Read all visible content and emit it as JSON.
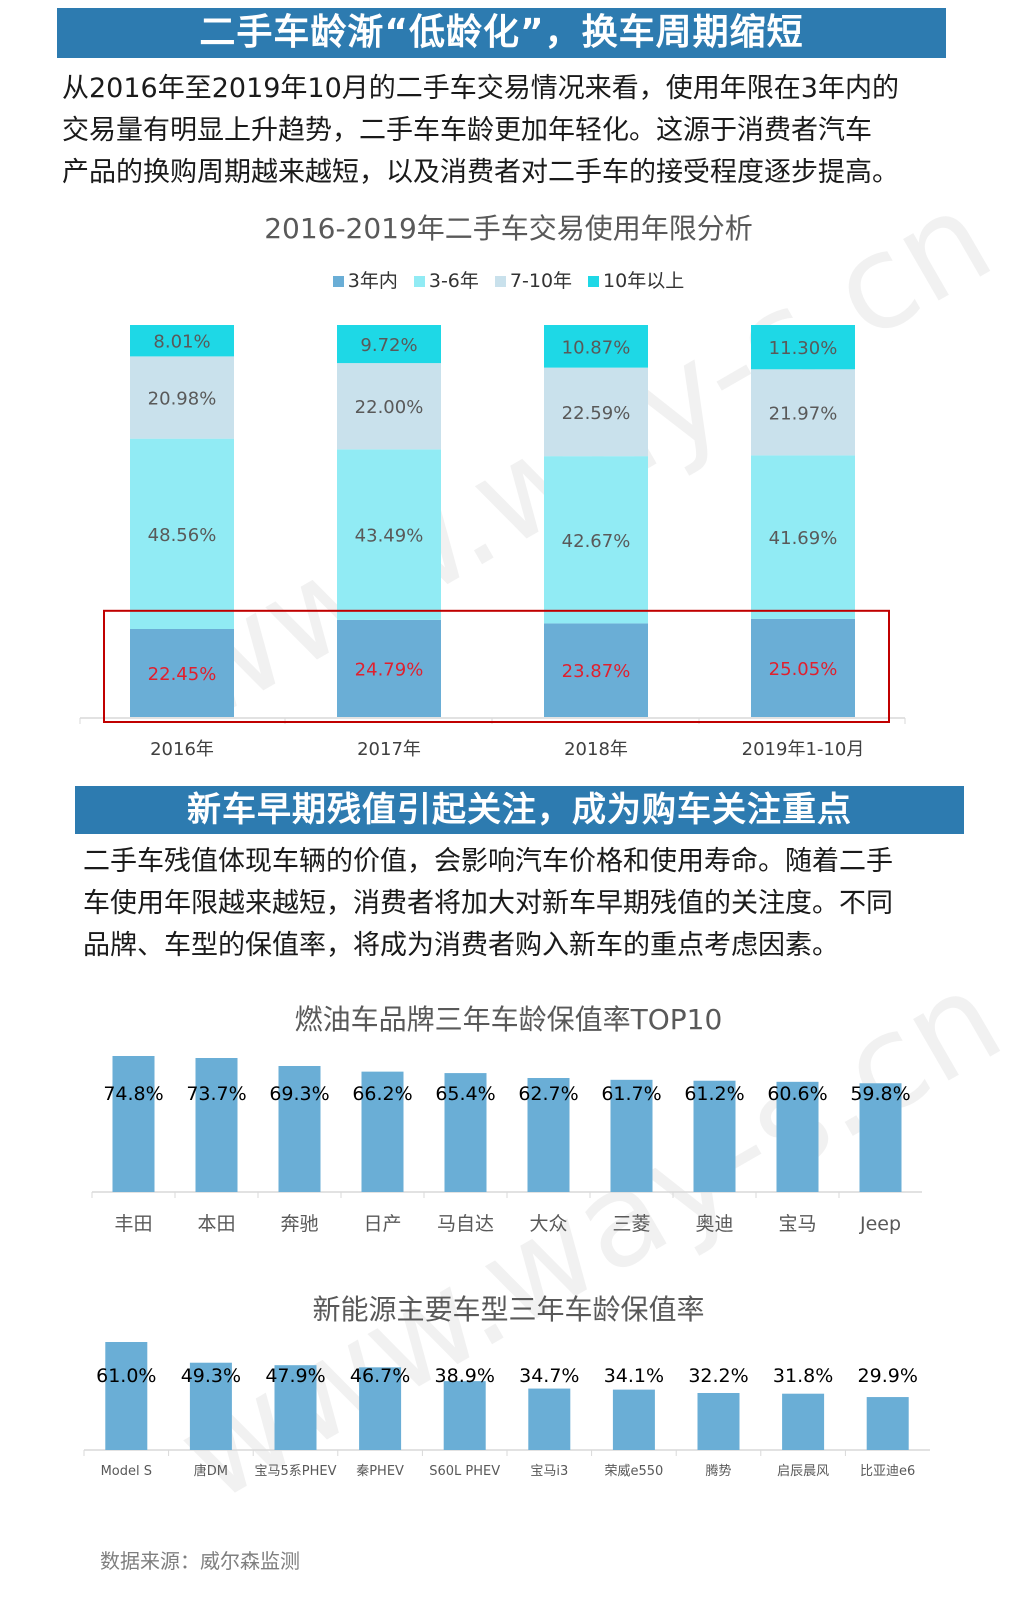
{
  "section1": {
    "banner": "二手车龄渐“低龄化”，换车周期缩短",
    "paragraph": "从2016年至2019年10月的二手车交易情况来看，使用年限在3年内的\n交易量有明显上升趋势，二手车车龄更加年轻化。这源于消费者汽车\n产品的换购周期越来越短，以及消费者对二手车的接受程度逐步提高。"
  },
  "section2": {
    "banner": "新车早期残值引起关注，成为购车关注重点",
    "paragraph": "二手车残值体现车辆的价值，会影响汽车价格和使用寿命。随着二手\n车使用年限越来越短，消费者将加大对新车早期残值的关注度。不同\n品牌、车型的保值率，将成为消费者购入新车的重点考虑因素。"
  },
  "watermark": "www.way-s.cn",
  "source": "数据来源：威尔森监测",
  "chart_data": [
    {
      "type": "bar",
      "stacked": true,
      "title": "2016-2019年二手车交易使用年限分析",
      "categories": [
        "2016年",
        "2017年",
        "2018年",
        "2019年1-10月"
      ],
      "series": [
        {
          "name": "3年内",
          "color": "#6aaed6",
          "values": [
            "22.45%",
            "24.79%",
            "23.87%",
            "25.05%"
          ],
          "nums": [
            22.45,
            24.79,
            23.87,
            25.05
          ],
          "label_color": "#e0202e"
        },
        {
          "name": "3-6年",
          "color": "#91ebf4",
          "values": [
            "48.56%",
            "43.49%",
            "42.67%",
            "41.69%"
          ],
          "nums": [
            48.56,
            43.49,
            42.67,
            41.69
          ],
          "label_color": "#595959"
        },
        {
          "name": "7-10年",
          "color": "#c9e1ec",
          "values": [
            "20.98%",
            "22.00%",
            "22.59%",
            "21.97%"
          ],
          "nums": [
            20.98,
            22.0,
            22.59,
            21.97
          ],
          "label_color": "#595959"
        },
        {
          "name": "10年以上",
          "color": "#1ed8e6",
          "values": [
            "8.01%",
            "9.72%",
            "10.87%",
            "11.30%"
          ],
          "nums": [
            8.01,
            9.72,
            10.87,
            11.3
          ],
          "label_color": "#595959"
        }
      ],
      "legend_position": "top",
      "highlight_series": "3年内",
      "highlight_color": "#c00000"
    },
    {
      "type": "bar",
      "title": "燃油车品牌三年车龄保值率TOP10",
      "categories": [
        "丰田",
        "本田",
        "奔驰",
        "日产",
        "马自达",
        "大众",
        "三菱",
        "奥迪",
        "宝马",
        "Jeep"
      ],
      "values": [
        74.8,
        73.7,
        69.3,
        66.2,
        65.4,
        62.7,
        61.7,
        61.2,
        60.6,
        59.8
      ],
      "labels": [
        "74.8%",
        "73.7%",
        "69.3%",
        "66.2%",
        "65.4%",
        "62.7%",
        "61.7%",
        "61.2%",
        "60.6%",
        "59.8%"
      ],
      "color": "#6aaed6"
    },
    {
      "type": "bar",
      "title": "新能源主要车型三年车龄保值率",
      "categories": [
        "Model S",
        "唐DM",
        "宝马5系PHEV",
        "秦PHEV",
        "S60L PHEV",
        "宝马i3",
        "荣威e550",
        "腾势",
        "启辰晨风",
        "比亚迪e6"
      ],
      "values": [
        61.0,
        49.3,
        47.9,
        46.7,
        38.9,
        34.7,
        34.1,
        32.2,
        31.8,
        29.9
      ],
      "labels": [
        "61.0%",
        "49.3%",
        "47.9%",
        "46.7%",
        "38.9%",
        "34.7%",
        "34.1%",
        "32.2%",
        "31.8%",
        "29.9%"
      ],
      "color": "#6aaed6"
    }
  ]
}
